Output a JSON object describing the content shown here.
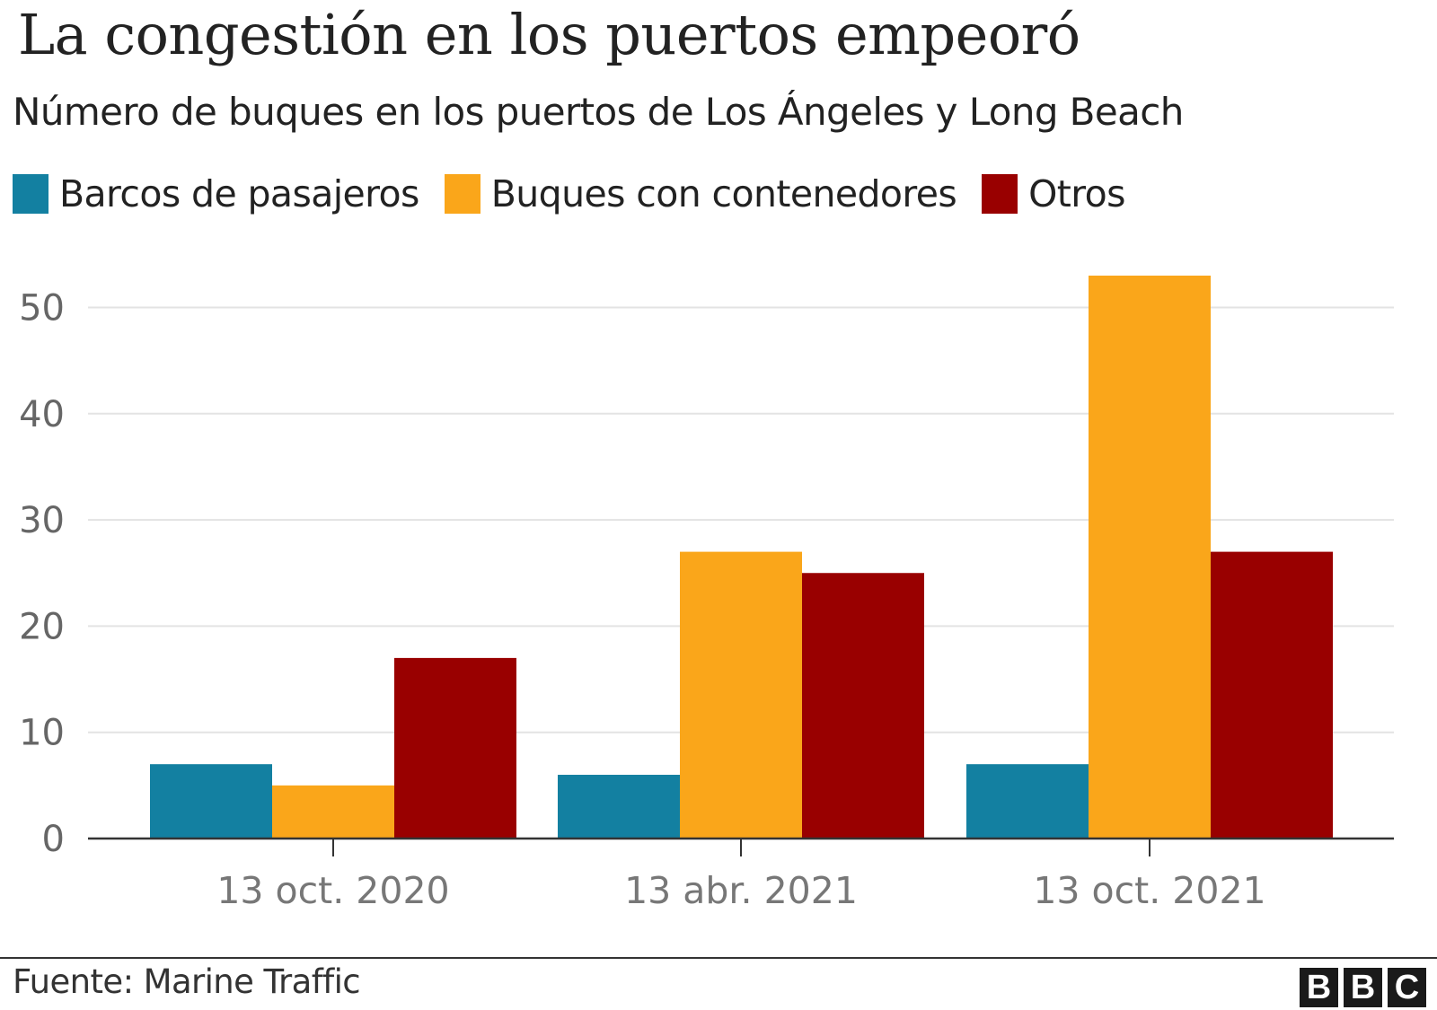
{
  "header": {
    "title": "La congestión en los puertos empeoró",
    "subtitle": "Número de buques en los puertos de Los Ángeles y Long Beach"
  },
  "footer": {
    "source": "Fuente: Marine Traffic",
    "logo_letters": [
      "B",
      "B",
      "C"
    ]
  },
  "chart_data": {
    "type": "bar",
    "title": "La congestión en los puertos empeoró",
    "subtitle": "Número de buques en los puertos de Los Ángeles y Long Beach",
    "xlabel": "",
    "ylabel": "",
    "categories": [
      "13 oct. 2020",
      "13 abr. 2021",
      "13 oct. 2021"
    ],
    "series": [
      {
        "name": "Barcos de pasajeros",
        "color": "#1380A1",
        "values": [
          7,
          6,
          7
        ]
      },
      {
        "name": "Buques con contenedores",
        "color": "#FAA61A",
        "values": [
          5,
          27,
          53
        ]
      },
      {
        "name": "Otros",
        "color": "#990000",
        "values": [
          17,
          25,
          27
        ]
      }
    ],
    "ylim": [
      0,
      55
    ],
    "yticks": [
      0,
      10,
      20,
      30,
      40,
      50
    ],
    "grid": true,
    "legend": "top-left"
  }
}
